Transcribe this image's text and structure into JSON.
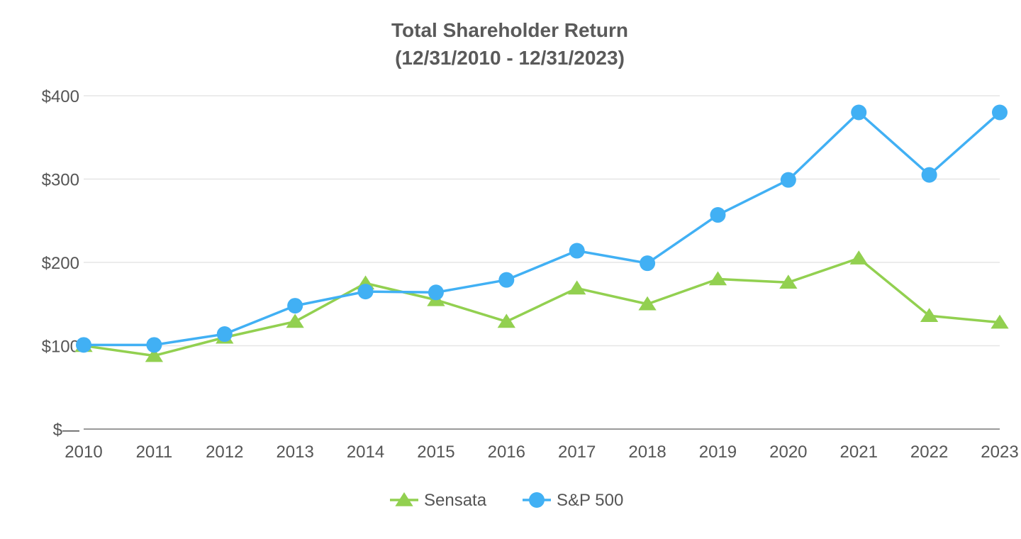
{
  "chart_data": {
    "type": "line",
    "title": "Total Shareholder Return",
    "subtitle": "(12/31/2010 - 12/31/2023)",
    "xlabel": "",
    "ylabel": "",
    "categories": [
      "2010",
      "2011",
      "2012",
      "2013",
      "2014",
      "2015",
      "2016",
      "2017",
      "2018",
      "2019",
      "2020",
      "2021",
      "2022",
      "2023"
    ],
    "ylim": [
      0,
      400
    ],
    "yticks": [
      {
        "value": 0,
        "label": "$—"
      },
      {
        "value": 100,
        "label": "$100"
      },
      {
        "value": 200,
        "label": "$200"
      },
      {
        "value": 300,
        "label": "$300"
      },
      {
        "value": 400,
        "label": "$400"
      }
    ],
    "grid": true,
    "legend_position": "bottom-center",
    "series": [
      {
        "name": "Sensata",
        "color": "#92d050",
        "marker": "triangle",
        "values": [
          100,
          88,
          110,
          129,
          175,
          155,
          129,
          169,
          150,
          180,
          176,
          205,
          136,
          128
        ]
      },
      {
        "name": "S&P 500",
        "color": "#41b0f4",
        "marker": "circle",
        "values": [
          101,
          101,
          114,
          148,
          165,
          164,
          179,
          214,
          199,
          257,
          299,
          380,
          305,
          380
        ]
      }
    ]
  }
}
